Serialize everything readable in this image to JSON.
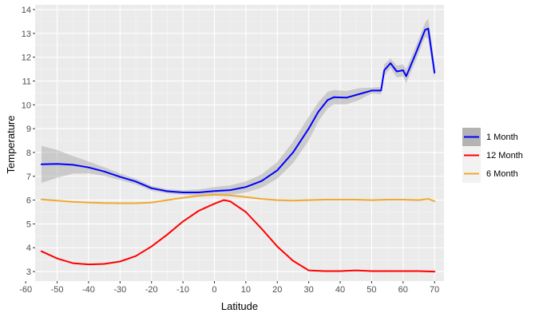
{
  "chart_data": {
    "type": "line",
    "title": "",
    "xlabel": "Latitude",
    "ylabel": "Temperature",
    "xlim": [
      -57,
      73
    ],
    "ylim": [
      2.6,
      14.2
    ],
    "x_ticks": [
      -60,
      -50,
      -40,
      -30,
      -20,
      -10,
      0,
      10,
      20,
      30,
      40,
      50,
      60,
      70
    ],
    "y_ticks": [
      3,
      4,
      5,
      6,
      7,
      8,
      9,
      10,
      11,
      12,
      13,
      14
    ],
    "grid": true,
    "legend": {
      "position": "right"
    },
    "series": [
      {
        "name": "1 Month",
        "color": "#0000ff",
        "x": [
          -55,
          -50,
          -45,
          -40,
          -35,
          -30,
          -25,
          -20,
          -15,
          -10,
          -5,
          0,
          5,
          10,
          15,
          20,
          25,
          30,
          33,
          36,
          38,
          42,
          46,
          50,
          53,
          54,
          56,
          58,
          60,
          61,
          64,
          67,
          68,
          70
        ],
        "y": [
          7.5,
          7.52,
          7.48,
          7.37,
          7.2,
          6.98,
          6.78,
          6.5,
          6.37,
          6.32,
          6.32,
          6.38,
          6.42,
          6.55,
          6.8,
          7.25,
          8.0,
          9.0,
          9.7,
          10.2,
          10.32,
          10.3,
          10.45,
          10.6,
          10.6,
          11.45,
          11.75,
          11.4,
          11.45,
          11.2,
          12.15,
          13.15,
          13.2,
          11.35
        ],
        "band_upper": [
          8.28,
          8.1,
          7.85,
          7.62,
          7.38,
          7.12,
          6.9,
          6.6,
          6.46,
          6.42,
          6.45,
          6.55,
          6.62,
          6.78,
          7.08,
          7.6,
          8.45,
          9.5,
          10.1,
          10.55,
          10.62,
          10.58,
          10.7,
          10.72,
          10.75,
          11.7,
          11.95,
          11.65,
          11.7,
          11.5,
          12.45,
          13.45,
          13.62,
          11.7
        ],
        "band_lower": [
          6.72,
          6.94,
          7.11,
          7.12,
          7.02,
          6.84,
          6.66,
          6.4,
          6.28,
          6.22,
          6.19,
          6.21,
          6.22,
          6.32,
          6.52,
          6.9,
          7.55,
          8.5,
          9.3,
          9.85,
          10.02,
          10.02,
          10.2,
          10.48,
          10.45,
          11.2,
          11.55,
          11.15,
          11.2,
          10.9,
          11.85,
          12.85,
          12.78,
          11.0
        ]
      },
      {
        "name": "12 Month",
        "color": "#ff0000",
        "x": [
          -55,
          -50,
          -45,
          -40,
          -35,
          -30,
          -25,
          -20,
          -15,
          -10,
          -5,
          0,
          3,
          5,
          10,
          15,
          20,
          25,
          30,
          35,
          40,
          45,
          50,
          55,
          60,
          65,
          70
        ],
        "y": [
          3.85,
          3.55,
          3.35,
          3.3,
          3.32,
          3.42,
          3.65,
          4.05,
          4.55,
          5.1,
          5.55,
          5.85,
          6.0,
          5.95,
          5.5,
          4.8,
          4.05,
          3.45,
          3.05,
          3.02,
          3.02,
          3.05,
          3.02,
          3.02,
          3.02,
          3.02,
          3.0
        ]
      },
      {
        "name": "6 Month",
        "color": "#f0a830",
        "x": [
          -55,
          -50,
          -45,
          -40,
          -35,
          -30,
          -25,
          -20,
          -15,
          -10,
          -5,
          0,
          5,
          10,
          15,
          20,
          25,
          30,
          35,
          40,
          45,
          50,
          55,
          60,
          65,
          68,
          70
        ],
        "y": [
          6.03,
          5.98,
          5.93,
          5.9,
          5.88,
          5.87,
          5.87,
          5.9,
          6.0,
          6.1,
          6.18,
          6.22,
          6.2,
          6.13,
          6.05,
          6.0,
          5.98,
          6.0,
          6.02,
          6.02,
          6.02,
          6.0,
          6.02,
          6.02,
          6.0,
          6.05,
          5.95
        ]
      }
    ]
  }
}
